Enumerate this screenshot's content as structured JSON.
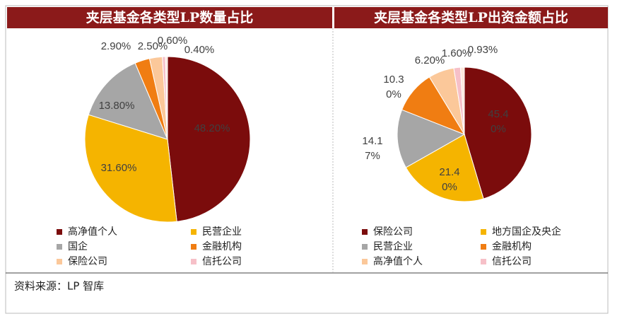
{
  "chart_data": [
    {
      "type": "pie",
      "title": "夹层基金各类型LP数量占比",
      "categories": [
        "高净值个人",
        "民营企业",
        "国企",
        "金融机构",
        "保险公司",
        "信托公司",
        null
      ],
      "values": [
        48.2,
        31.6,
        13.8,
        2.9,
        2.5,
        0.6,
        0.4
      ],
      "value_labels": [
        "48.20%",
        "31.60%",
        "13.80%",
        "2.90%",
        "2.50%",
        "0.60%",
        "0.40%"
      ],
      "colors": [
        "#7b0c0c",
        "#f5b400",
        "#a6a6a6",
        "#f07d12",
        "#fbc89a",
        "#f6c0c8",
        "#fde8dc"
      ]
    },
    {
      "type": "pie",
      "title": "夹层基金各类型LP出资金额占比",
      "categories": [
        "保险公司",
        "地方国企及央企",
        "民营企业",
        "金融机构",
        "高净值个人",
        "信托公司",
        null
      ],
      "values": [
        45.4,
        21.4,
        14.17,
        10.3,
        6.2,
        1.6,
        0.93
      ],
      "value_labels": [
        "45.40%",
        "21.40%",
        "14.17%",
        "10.30%",
        "6.20%",
        "1.60%",
        "0.93%"
      ],
      "colors": [
        "#7b0c0c",
        "#f5b400",
        "#a6a6a6",
        "#f07d12",
        "#fbc89a",
        "#f6c0c8",
        "#fde8dc"
      ]
    }
  ],
  "source": "资料来源：LP 智库"
}
